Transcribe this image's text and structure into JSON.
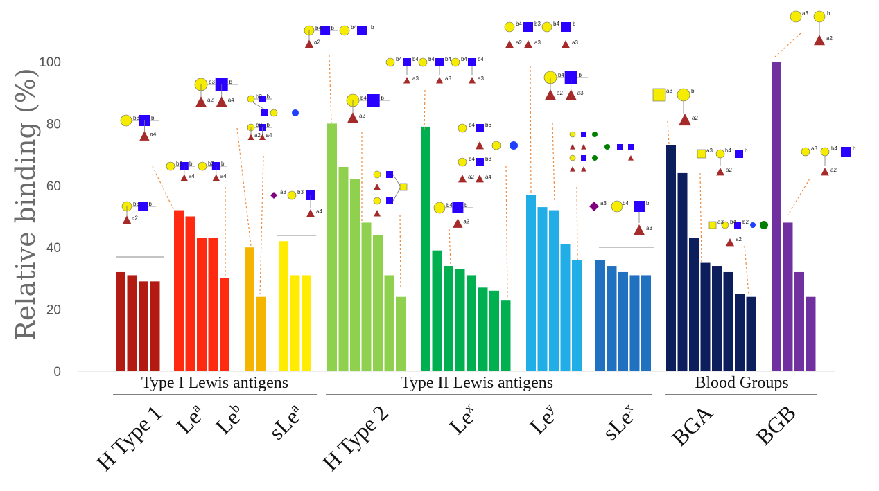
{
  "chart_data": {
    "type": "bar",
    "ylabel": "Relative binding (%)",
    "ylim": [
      0,
      100
    ],
    "yticks": [
      "0",
      "20",
      "40",
      "60",
      "80",
      "100"
    ],
    "grid": false,
    "groups": [
      {
        "label": "Type I Lewis antigens",
        "categories": [
          "H Type 1",
          "Le^a",
          "Le^b",
          "sLe^a"
        ]
      },
      {
        "label": "Type II Lewis antigens",
        "categories": [
          "H Type 2",
          "Le^x",
          "Le^y",
          "sLe^x"
        ]
      },
      {
        "label": "Blood Groups",
        "categories": [
          "BGA",
          "BGB"
        ]
      }
    ],
    "categories": [
      {
        "base": "H Type 1",
        "sup": "",
        "color": "#b31a12",
        "values": [
          32,
          31,
          29,
          29
        ]
      },
      {
        "base": "Le",
        "sup": "a",
        "color": "#ff2a10",
        "values": [
          52,
          50,
          43,
          43,
          30
        ]
      },
      {
        "base": "Le",
        "sup": "b",
        "color": "#f5b400",
        "values": [
          40,
          24
        ]
      },
      {
        "base": "sLe",
        "sup": "a",
        "color": "#ffec00",
        "values": [
          42,
          31,
          31
        ]
      },
      {
        "base": "H Type 2",
        "sup": "",
        "color": "#8fd14f",
        "values": [
          80,
          66,
          62,
          48,
          44,
          31,
          24
        ]
      },
      {
        "base": "Le",
        "sup": "x",
        "color": "#00b050",
        "values": [
          79,
          39,
          34,
          33,
          31,
          27,
          26,
          23
        ]
      },
      {
        "base": "Le",
        "sup": "y",
        "color": "#21ade6",
        "values": [
          57,
          53,
          52,
          41,
          36
        ]
      },
      {
        "base": "sLe",
        "sup": "x",
        "color": "#2072c0",
        "values": [
          36,
          34,
          32,
          31,
          31
        ]
      },
      {
        "base": "BGA",
        "sup": "",
        "color": "#0d1e5c",
        "values": [
          73,
          64,
          43,
          35,
          34,
          32,
          25,
          24
        ]
      },
      {
        "base": "BGB",
        "sup": "",
        "color": "#7030a0",
        "values": [
          100,
          48,
          32,
          24
        ]
      }
    ],
    "annotation_labels": [
      "b3",
      "b4",
      "b6",
      "b2",
      "a2",
      "a3",
      "a4",
      "b"
    ]
  },
  "colors": {
    "galactose": "#f5ec00",
    "glcnac": "#2a00ff",
    "fucose": "#a52a2a",
    "neuac": "#800080",
    "glucose": "#1f3fff",
    "mannose": "#008000",
    "connector": "#f08a3c"
  }
}
